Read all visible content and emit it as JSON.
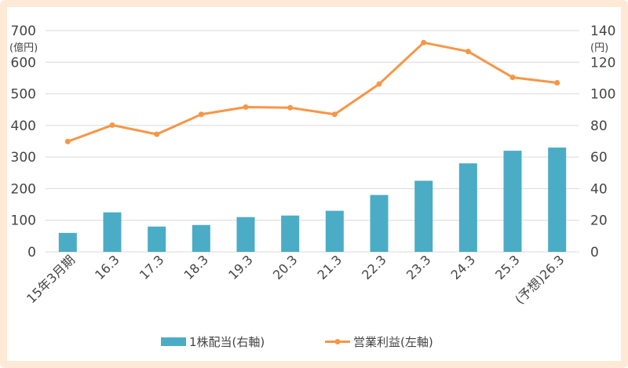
{
  "chart_data": {
    "type": "bar+line",
    "categories": [
      "15年3月期",
      "16.3",
      "17.3",
      "18.3",
      "19.3",
      "20.3",
      "21.3",
      "22.3",
      "23.3",
      "24.3",
      "25.3",
      "(予想)26.3"
    ],
    "series": [
      {
        "name": "1株配当(右軸)",
        "type": "bar",
        "axis": "right",
        "color": "#4bacc6",
        "values": [
          12,
          25,
          16,
          17,
          22,
          23,
          26,
          36,
          45,
          56,
          64,
          66
        ]
      },
      {
        "name": "営業利益(左軸)",
        "type": "line",
        "axis": "left",
        "color": "#f79646",
        "values": [
          349,
          401,
          372,
          435,
          458,
          456,
          435,
          531,
          662,
          634,
          552,
          535
        ]
      }
    ],
    "left_axis": {
      "unit": "(億円)",
      "ylim": [
        0,
        700
      ],
      "ticks": [
        "0",
        "100",
        "200",
        "300",
        "400",
        "500",
        "600",
        "700"
      ]
    },
    "right_axis": {
      "unit": "(円)",
      "ylim": [
        0,
        140
      ],
      "ticks": [
        "0",
        "20",
        "40",
        "60",
        "80",
        "100",
        "120",
        "140"
      ]
    },
    "grid": true,
    "legend_position": "bottom"
  }
}
